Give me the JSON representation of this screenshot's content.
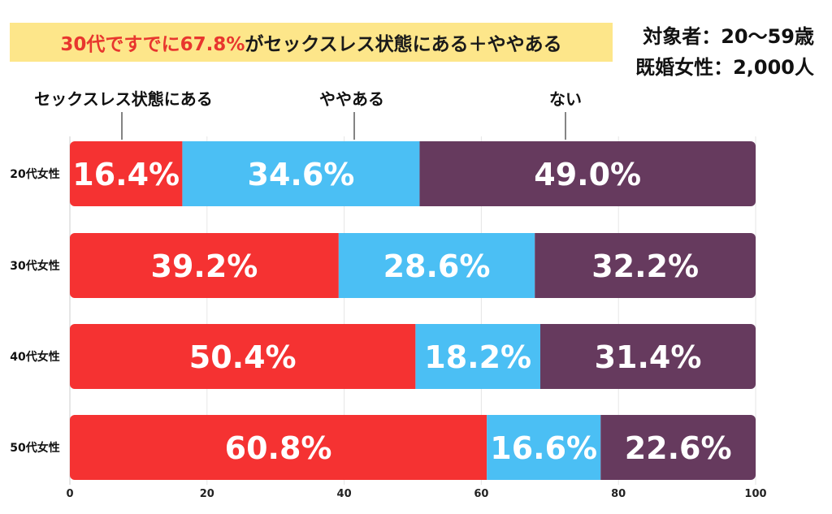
{
  "header": {
    "title_highlight": "30代ですでに67.8%",
    "title_rest": "がセックスレス状態にある＋ややある",
    "target": "対象者：20〜59歳",
    "sample": "既婚女性：2,000人"
  },
  "chart_data": {
    "type": "bar",
    "orientation": "horizontal",
    "stacked": true,
    "categories": [
      "20代女性",
      "30代女性",
      "40代女性",
      "50代女性"
    ],
    "series": [
      {
        "name": "セックスレス状態にある",
        "color": "#f53232",
        "values": [
          16.4,
          39.2,
          50.4,
          60.8
        ]
      },
      {
        "name": "ややある",
        "color": "#4bbff4",
        "values": [
          34.6,
          28.6,
          18.2,
          16.6
        ]
      },
      {
        "name": "ない",
        "color": "#663a5e",
        "values": [
          49.0,
          32.2,
          31.4,
          22.6
        ]
      }
    ],
    "xlim": [
      0,
      100
    ],
    "xticks": [
      0,
      20,
      40,
      60,
      80,
      100
    ],
    "grid": true,
    "legend": "top",
    "value_suffix": "%"
  }
}
